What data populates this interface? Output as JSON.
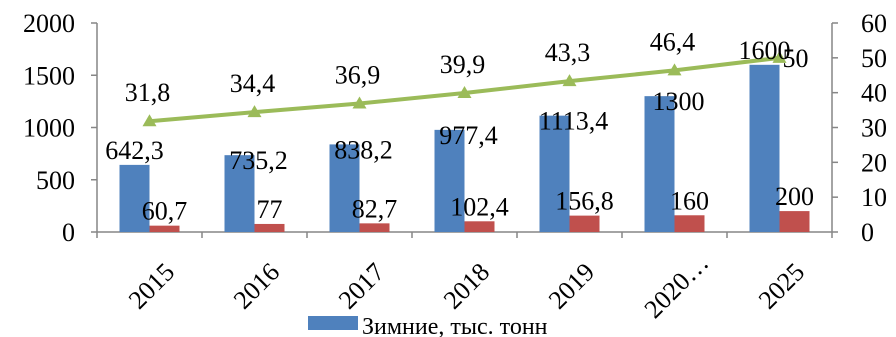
{
  "chart_data": {
    "type": "bar",
    "categories": [
      "2015",
      "2016",
      "2017",
      "2018",
      "2019",
      "2020…",
      "2025"
    ],
    "series": [
      {
        "name": "Зимние, тыс. тонн",
        "type": "bar",
        "axis": "left",
        "color": "#4f81bd",
        "values": [
          642.3,
          735.2,
          838.2,
          977.4,
          1113.4,
          1300,
          1600
        ],
        "labels": [
          "642,3",
          "735,2",
          "838,2",
          "977,4",
          "1113,4",
          "1300",
          "1600"
        ]
      },
      {
        "type": "bar",
        "axis": "left",
        "color": "#c0504d",
        "values": [
          60.7,
          77,
          82.7,
          102.4,
          156.8,
          160,
          200
        ],
        "labels": [
          "60,7",
          "77",
          "82,7",
          "102,4",
          "156,8",
          "160",
          "200"
        ]
      },
      {
        "type": "line",
        "axis": "right",
        "color": "#9bbb59",
        "marker": "triangle",
        "values": [
          31.8,
          34.4,
          36.9,
          39.9,
          43.3,
          46.4,
          50
        ],
        "labels": [
          "31,8",
          "34,4",
          "36,9",
          "39,9",
          "43,3",
          "46,4",
          "50"
        ]
      }
    ],
    "y_left": {
      "min": 0,
      "max": 2000,
      "ticks": [
        "0",
        "500",
        "1000",
        "1500",
        "2000"
      ]
    },
    "y_right": {
      "min": 0,
      "max": 60,
      "ticks": [
        "0",
        "10",
        "20",
        "30",
        "40",
        "50",
        "60"
      ]
    },
    "grid": false,
    "legend": {
      "placement": "bottom",
      "visible_entries": [
        "Зимние, тыс. тонн"
      ]
    }
  }
}
